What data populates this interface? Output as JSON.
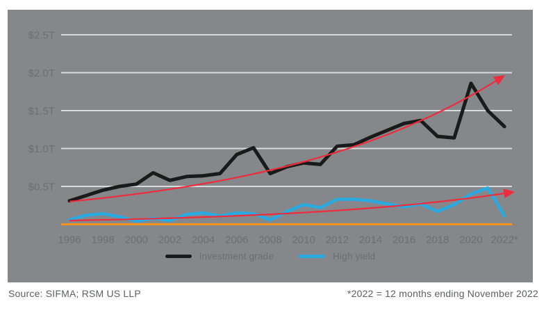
{
  "panel": {
    "background": "#85878a"
  },
  "legend": [
    {
      "label": "Investment grade",
      "color": "#1a1a1a"
    },
    {
      "label": "High yield",
      "color": "#29abe2"
    }
  ],
  "footer": {
    "source": "Source: SIFMA; RSM US LLP",
    "note": "*2022 = 12 months ending November 2022"
  },
  "chart_data": {
    "type": "line",
    "title": "",
    "xlabel": "",
    "ylabel": "",
    "unit": "trillions of US dollars",
    "ylim": [
      0,
      2.75
    ],
    "grid": "horizontal",
    "legend_position": "bottom-center",
    "x": [
      1996,
      1997,
      1998,
      1999,
      2000,
      2001,
      2002,
      2003,
      2004,
      2005,
      2006,
      2007,
      2008,
      2009,
      2010,
      2011,
      2012,
      2013,
      2014,
      2015,
      2016,
      2017,
      2018,
      2019,
      2020,
      2021,
      2022
    ],
    "series": [
      {
        "name": "Investment grade",
        "color": "#1a1a1a",
        "values": [
          0.31,
          0.38,
          0.45,
          0.5,
          0.53,
          0.68,
          0.58,
          0.63,
          0.64,
          0.67,
          0.92,
          1.01,
          0.67,
          0.76,
          0.81,
          0.79,
          1.03,
          1.05,
          1.15,
          1.24,
          1.33,
          1.37,
          1.16,
          1.14,
          1.86,
          1.5,
          1.29
        ]
      },
      {
        "name": "High yield",
        "color": "#29abe2",
        "values": [
          0.06,
          0.12,
          0.14,
          0.1,
          0.04,
          0.08,
          0.05,
          0.13,
          0.15,
          0.11,
          0.15,
          0.14,
          0.06,
          0.17,
          0.26,
          0.22,
          0.33,
          0.33,
          0.31,
          0.27,
          0.23,
          0.27,
          0.17,
          0.26,
          0.4,
          0.48,
          0.11
        ]
      }
    ],
    "trends": [
      {
        "name": "Investment grade trend arrow",
        "color": "#ee2c3c",
        "interpolation": "exponential",
        "start_year": 1996,
        "start_value": 0.3,
        "end_year": 2021.55,
        "end_value": 1.9
      },
      {
        "name": "High yield trend arrow",
        "color": "#ee2c3c",
        "interpolation": "exponential",
        "start_year": 1996,
        "start_value": 0.05,
        "end_year": 2022.05,
        "end_value": 0.41
      }
    ],
    "y_ticks": [
      {
        "label": "$2.5T",
        "value": 2.5
      },
      {
        "label": "$2.0T",
        "value": 2.0
      },
      {
        "label": "$1.5T",
        "value": 1.5
      },
      {
        "label": "$1.0T",
        "value": 1.0
      },
      {
        "label": "$0.5T",
        "value": 0.5
      }
    ],
    "x_tick_labels": [
      {
        "label": "1996",
        "year": 1996
      },
      {
        "label": "1998",
        "year": 1998
      },
      {
        "label": "2000",
        "year": 2000
      },
      {
        "label": "2002",
        "year": 2002
      },
      {
        "label": "2004",
        "year": 2004
      },
      {
        "label": "2006",
        "year": 2006
      },
      {
        "label": "2008",
        "year": 2008
      },
      {
        "label": "2010",
        "year": 2010
      },
      {
        "label": "2012",
        "year": 2012
      },
      {
        "label": "2014",
        "year": 2014
      },
      {
        "label": "2016",
        "year": 2016
      },
      {
        "label": "2018",
        "year": 2018
      },
      {
        "label": "2020",
        "year": 2020
      },
      {
        "label": "2022*",
        "year": 2022
      }
    ],
    "colors": {
      "gridline": "#d8d9db",
      "zero_axis": "#f6921e",
      "axis_text": "#6d6e71"
    }
  }
}
